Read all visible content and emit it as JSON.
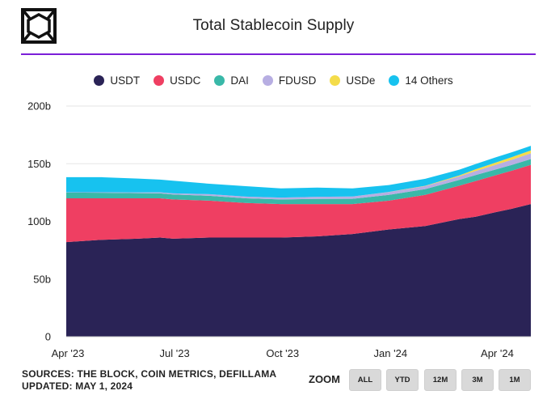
{
  "header": {
    "title": "Total Stablecoin Supply"
  },
  "colors": {
    "accent_line": "#7b1fd8",
    "USDT": "#2a2356",
    "USDC": "#ef3f62",
    "DAI": "#39b8a8",
    "FDUSD": "#b7aee2",
    "USDe": "#f4dc4a",
    "14 Others": "#17c2ef"
  },
  "footer": {
    "sources": "SOURCES: THE BLOCK, COIN METRICS, DEFILLAMA",
    "updated": "UPDATED: MAY 1, 2024"
  },
  "zoom": {
    "label": "ZOOM",
    "buttons": [
      "ALL",
      "YTD",
      "12M",
      "3M",
      "1M"
    ]
  },
  "chart_data": {
    "type": "area",
    "title": "Total Stablecoin Supply",
    "stacked": true,
    "legend_position": "top",
    "grid": true,
    "y_unit": "b",
    "ylim": [
      0,
      200
    ],
    "y_ticks": [
      0,
      50,
      100,
      150,
      200
    ],
    "y_tick_labels": [
      "0",
      "50b",
      "100b",
      "150b",
      "200b"
    ],
    "x_tick_labels": [
      "Apr '23",
      "Jul '23",
      "Oct '23",
      "Jan '24",
      "Apr '24"
    ],
    "x_tick_dates": [
      "2023-04-01",
      "2023-07-01",
      "2023-10-01",
      "2024-01-01",
      "2024-04-01"
    ],
    "x": [
      "2023-04-01",
      "2023-05-01",
      "2023-06-01",
      "2023-06-20",
      "2023-07-01",
      "2023-08-01",
      "2023-09-01",
      "2023-10-01",
      "2023-11-01",
      "2023-12-01",
      "2024-01-01",
      "2024-02-01",
      "2024-03-01",
      "2024-03-15",
      "2024-04-01",
      "2024-04-15",
      "2024-05-01"
    ],
    "series": [
      {
        "name": "USDT",
        "values": [
          82,
          84,
          85,
          86,
          85,
          86,
          86,
          86,
          87,
          89,
          93,
          96,
          102,
          104,
          108,
          111,
          115
        ]
      },
      {
        "name": "USDC",
        "values": [
          38,
          36,
          35,
          34,
          34,
          32,
          30,
          29,
          28,
          26,
          25,
          27,
          29,
          31,
          32,
          33,
          34
        ]
      },
      {
        "name": "DAI",
        "values": [
          5,
          4.8,
          4.5,
          4.3,
          4.3,
          4.2,
          4.0,
          4.0,
          4.5,
          4.6,
          5.0,
          5.0,
          5.0,
          5.2,
          5.0,
          5.0,
          5.0
        ]
      },
      {
        "name": "FDUSD",
        "values": [
          0.3,
          0.5,
          0.6,
          0.9,
          1.0,
          1.4,
          1.5,
          1.6,
          1.8,
          2.0,
          2.4,
          2.6,
          3.0,
          3.5,
          4.0,
          4.5,
          5.0
        ]
      },
      {
        "name": "USDe",
        "values": [
          0,
          0,
          0,
          0,
          0,
          0,
          0,
          0,
          0,
          0,
          0.1,
          0.3,
          0.8,
          1.5,
          2.0,
          2.3,
          2.5
        ]
      },
      {
        "name": "14 Others",
        "values": [
          13,
          13,
          12,
          11,
          11,
          9,
          9,
          8,
          8,
          7,
          6,
          6,
          5,
          4.5,
          4.5,
          4.2,
          4.0
        ]
      }
    ]
  }
}
